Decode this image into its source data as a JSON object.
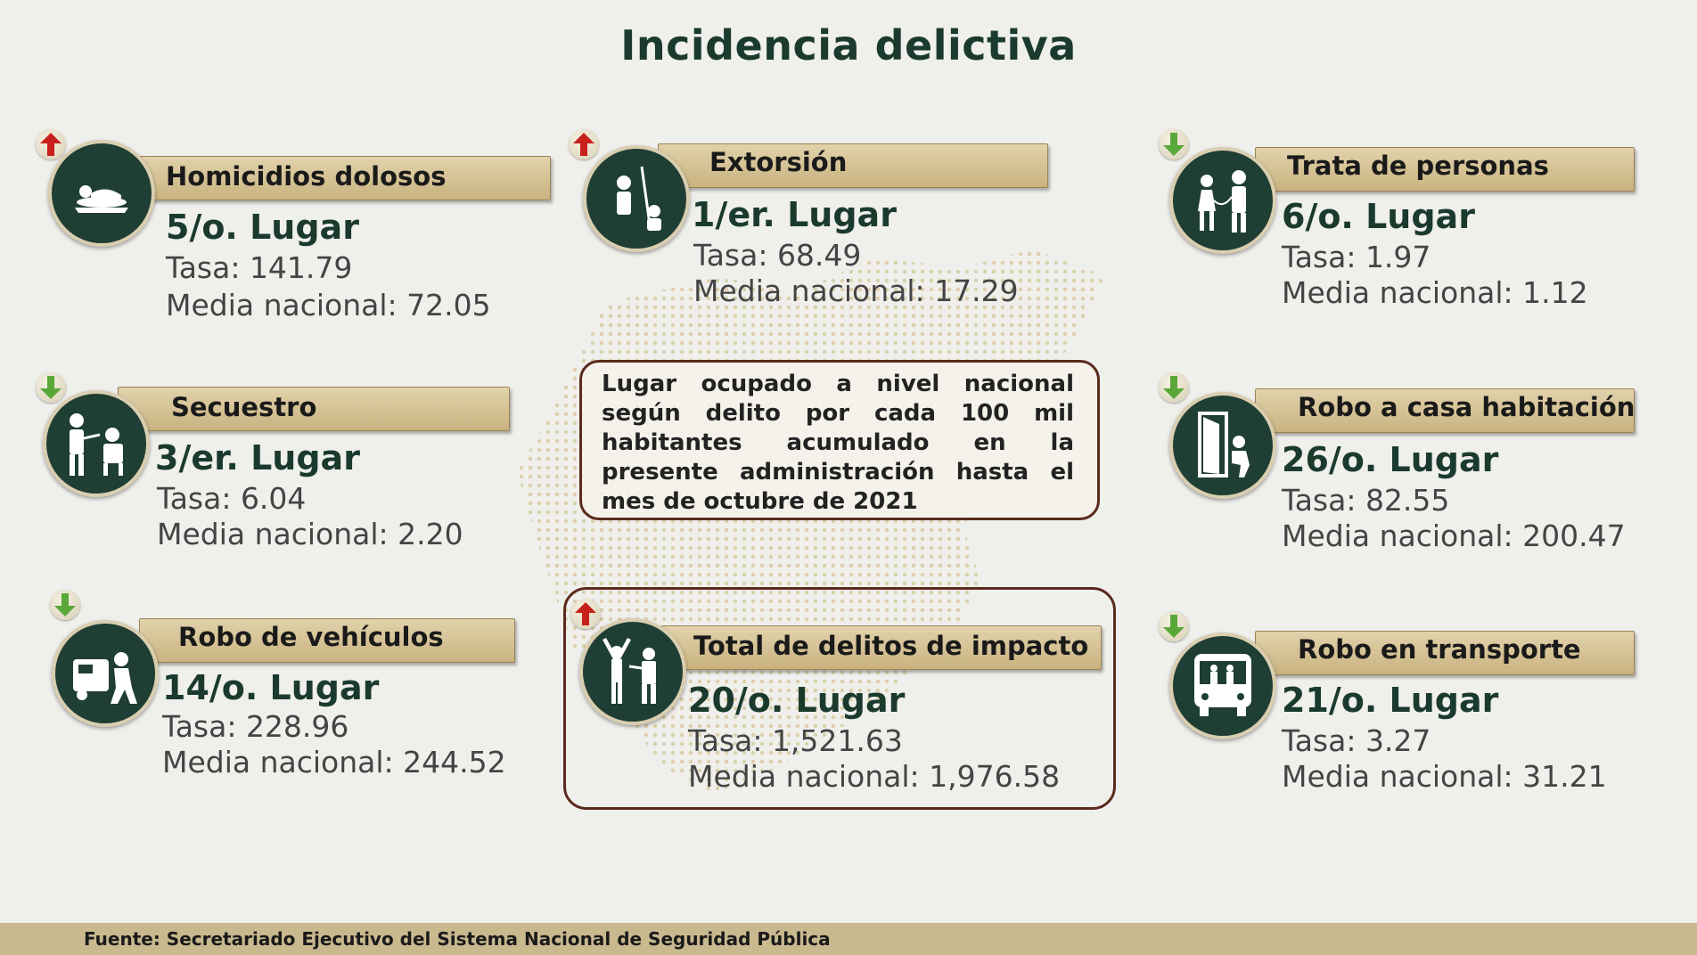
{
  "title": "Incidencia delictiva",
  "info_box": "Lugar ocupado a nivel nacional según delito por cada 100 mil habitantes acumulado en la presente administración hasta el mes de octubre de 2021",
  "colors": {
    "trend_up": "#c8201b",
    "trend_down": "#5aa83a",
    "icon_bg": "#1f3e34",
    "label_bar": "#d8c497",
    "border": "#5a2a1c"
  },
  "cards": [
    {
      "label": "Homicidios dolosos",
      "rank": "5/o. Lugar",
      "rate": "Tasa: 141.79",
      "mean": "Media nacional:  72.05",
      "trend": "up",
      "icon": "body-icon"
    },
    {
      "label": "Extorsión",
      "rank": "1/er. Lugar",
      "rate": "Tasa: 68.49",
      "mean": "Media nacional: 17.29",
      "trend": "up",
      "icon": "phone-extortion-icon"
    },
    {
      "label": "Trata de personas",
      "rank": "6/o. Lugar",
      "rate": "Tasa: 1.97",
      "mean": "Media nacional: 1.12",
      "trend": "down",
      "icon": "trafficking-icon"
    },
    {
      "label": "Secuestro",
      "rank": "3/er. Lugar",
      "rate": "Tasa: 6.04",
      "mean": "Media nacional: 2.20",
      "trend": "down",
      "icon": "kidnapping-icon"
    },
    {
      "label": "Robo a casa habitación",
      "rank": "26/o. Lugar",
      "rate": "Tasa: 82.55",
      "mean": "Media nacional: 200.47",
      "trend": "down",
      "icon": "burglary-icon"
    },
    {
      "label": "Robo de vehículos",
      "rank": "14/o. Lugar",
      "rate": "Tasa: 228.96",
      "mean": "Media nacional: 244.52",
      "trend": "down",
      "icon": "car-theft-icon"
    },
    {
      "label": "Total de delitos de impacto",
      "rank": "20/o. Lugar",
      "rate": "Tasa: 1,521.63",
      "mean": "Media nacional: 1,976.58",
      "trend": "up",
      "icon": "robbery-icon"
    },
    {
      "label": "Robo en transporte",
      "rank": "21/o. Lugar",
      "rate": "Tasa: 3.27",
      "mean": "Media nacional: 31.21",
      "trend": "down",
      "icon": "bus-icon"
    }
  ],
  "footer": "Fuente: Secretariado Ejecutivo del Sistema Nacional de Seguridad Pública"
}
